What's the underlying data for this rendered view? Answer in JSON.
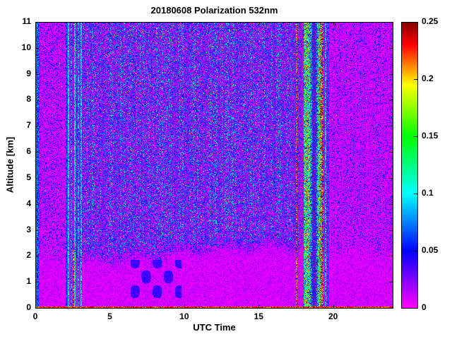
{
  "chart_data": {
    "type": "heatmap",
    "title": "20180608 Polarization 532nm",
    "xlabel": "UTC Time",
    "ylabel": "Altitude [km]",
    "xlim": [
      0,
      24
    ],
    "ylim": [
      0,
      11
    ],
    "clim": [
      0,
      0.25
    ],
    "grid": false,
    "x_ticks": [
      0,
      5,
      10,
      15,
      20
    ],
    "x_tick_labels": [
      "0",
      "5",
      "10",
      "15",
      "20"
    ],
    "y_ticks": [
      0,
      1,
      2,
      3,
      4,
      5,
      6,
      7,
      8,
      9,
      10,
      11
    ],
    "y_tick_labels": [
      "0",
      "1",
      "2",
      "3",
      "4",
      "5",
      "6",
      "7",
      "8",
      "9",
      "10",
      "11"
    ],
    "colorbar_ticks": [
      0,
      0.05,
      0.1,
      0.15,
      0.2,
      0.25
    ],
    "colorbar_tick_labels": [
      "0",
      "0.05",
      "0.1",
      "0.15",
      "0.2",
      "0.25"
    ],
    "colormap_stops": [
      {
        "v": 0.0,
        "r": 255,
        "g": 0,
        "b": 255
      },
      {
        "v": 0.05,
        "r": 0,
        "g": 0,
        "b": 255
      },
      {
        "v": 0.1,
        "r": 0,
        "g": 255,
        "b": 255
      },
      {
        "v": 0.15,
        "r": 0,
        "g": 255,
        "b": 0
      },
      {
        "v": 0.195,
        "r": 255,
        "g": 255,
        "b": 0
      },
      {
        "v": 0.23,
        "r": 255,
        "g": 0,
        "b": 0
      },
      {
        "v": 0.25,
        "r": 128,
        "g": 0,
        "b": 0
      }
    ],
    "noise": {
      "seed": 20180608,
      "col_density_base": 0.72,
      "col_density_spread": 0.56,
      "quiet": {
        "floor": 0.004,
        "spread": 0.048,
        "power": 3.0
      },
      "active": {
        "floor": 0.009,
        "spread": 0.088,
        "power": 2.1
      },
      "active_range": [
        2.7,
        17.75
      ],
      "blend_width": 0.55,
      "speckle": {
        "prob": 0.014,
        "min": 0.09,
        "spread": 0.16
      },
      "boundary_layer": {
        "base": 1.5,
        "rise": 0.55,
        "rise_center": 9.3,
        "rise_rate": 1.6,
        "fall_amount": 0.3,
        "fall_center": 19.6,
        "fall_rate": 0.9,
        "wave_amp": 0.12,
        "wave_freq": 2.1,
        "jitter": 0.07,
        "value_floor": 0.003,
        "value_spread": 0.021,
        "transition": 0.9
      },
      "bl_structure": {
        "t0": 6.3,
        "t1": 9.8,
        "z0": 0.35,
        "z1": 1.85,
        "tf": 4.2,
        "zf": 5.5,
        "base": 0.028,
        "amp": 0.02,
        "thresh": 0.25
      },
      "stripes": [
        {
          "t": 0.13,
          "w": 0.08,
          "v": 0.065
        },
        {
          "t": 2.08,
          "w": 0.045,
          "v": 0.06
        },
        {
          "t": 2.22,
          "w": 0.055,
          "v": 0.092
        },
        {
          "t": 2.38,
          "w": 0.045,
          "v": 0.07
        },
        {
          "t": 2.62,
          "w": 0.055,
          "v": 0.1
        },
        {
          "t": 2.85,
          "w": 0.045,
          "v": 0.075
        },
        {
          "t": 3.05,
          "w": 0.05,
          "v": 0.088
        },
        {
          "t": 19.45,
          "w": 0.05,
          "v": 0.082
        },
        {
          "t": 19.62,
          "w": 0.04,
          "v": 0.06
        }
      ],
      "red_lines": [
        {
          "t": 2.52,
          "w": 0.05,
          "zmax": 2.3,
          "v": 0.19,
          "spread": 0.06,
          "dark_frac": 0.3
        },
        {
          "t": 17.52,
          "w": 0.06,
          "zmax": 11,
          "v": 0.19,
          "spread": 0.06,
          "dark_frac": 0.4
        },
        {
          "t": 19.3,
          "w": 0.05,
          "zmax": 11,
          "v": 0.19,
          "spread": 0.06,
          "dark_frac": 0.35
        }
      ],
      "calibration": {
        "t0": 17.98,
        "t1": 19.25,
        "floor": 0.055,
        "spread": 0.15,
        "power": 1.15,
        "mod_freq": 6.5,
        "edge_boost": 0.45,
        "dark_prob": 0.035,
        "low_prob": 0.07
      },
      "bottom_line": {
        "z": 0.07,
        "v": 0.2,
        "spread": 0.05
      }
    }
  }
}
